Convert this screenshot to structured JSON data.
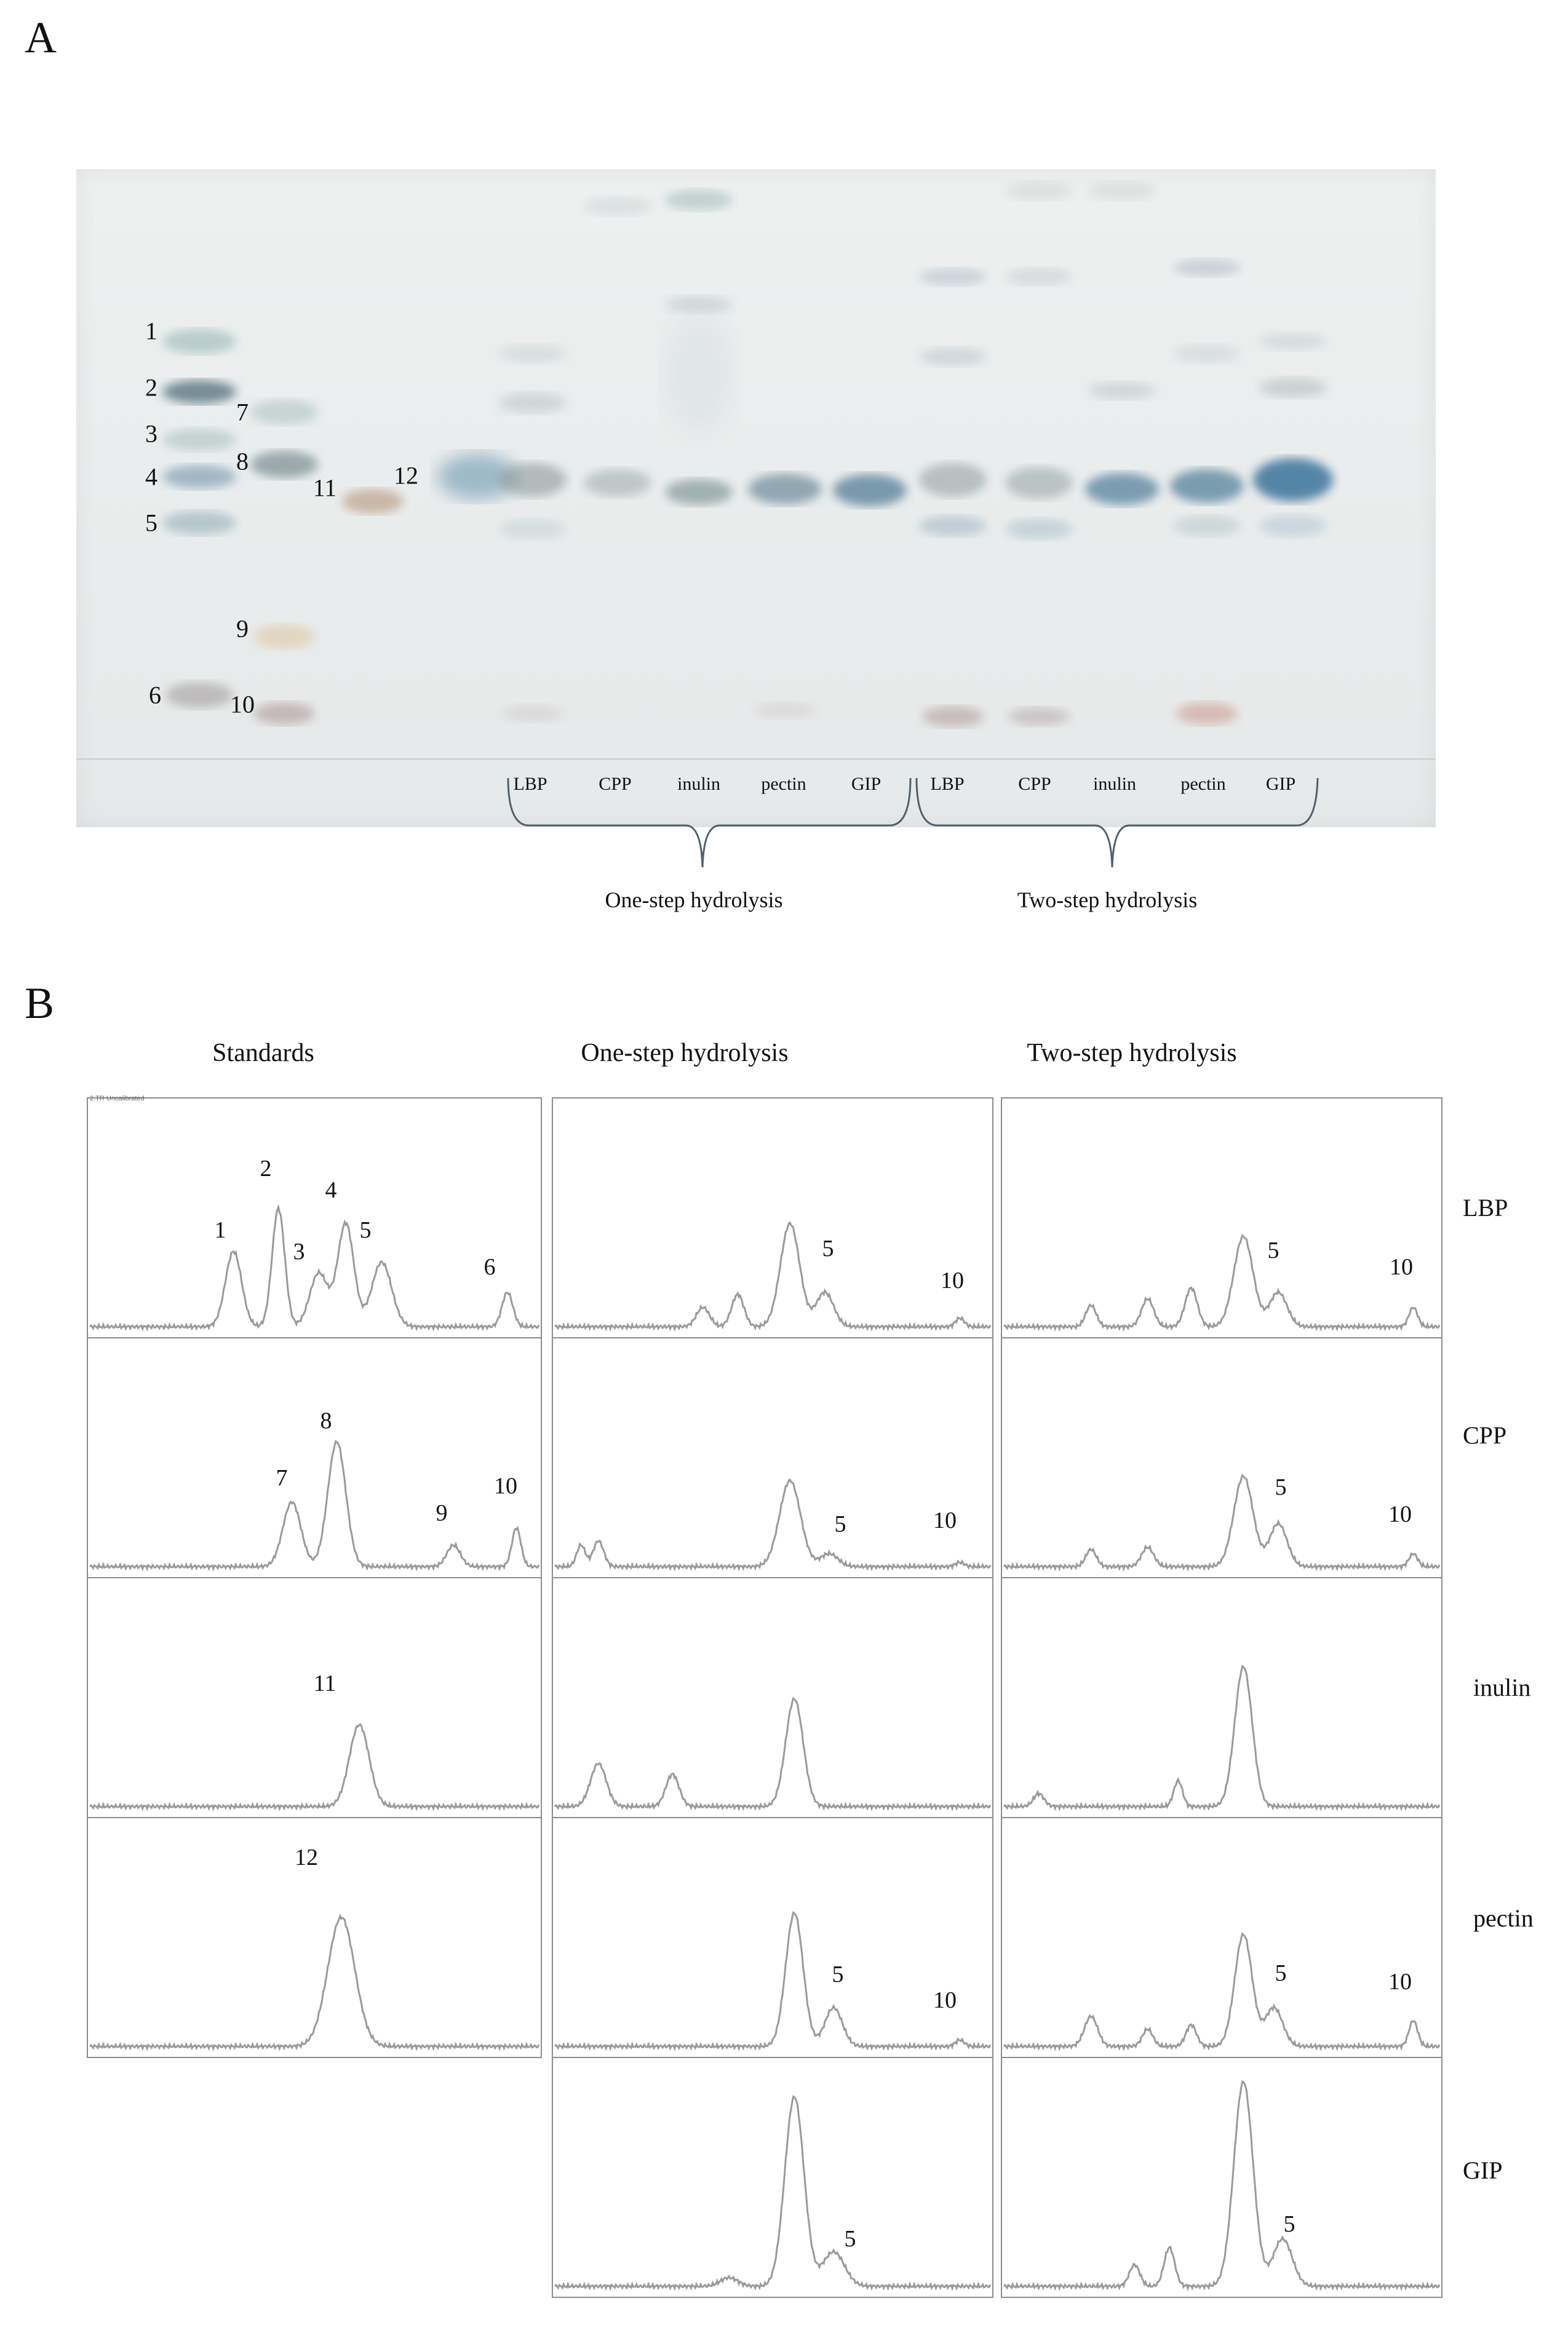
{
  "panel_a": {
    "letter": "A",
    "standard_numbers": [
      "1",
      "2",
      "3",
      "4",
      "5",
      "6",
      "7",
      "8",
      "9",
      "10",
      "11",
      "12"
    ],
    "lane_labels": [
      "LBP",
      "CPP",
      "inulin",
      "pectin",
      "GIP",
      "LBP",
      "CPP",
      "inulin",
      "pectin",
      "GIP"
    ],
    "groups": [
      "One-step hydrolysis",
      "Two-step hydrolysis"
    ],
    "colors": {
      "blue_band": "#5f8fa8",
      "grey_band": "#8a9a9a",
      "brown_band": "#b08a70",
      "orange_band": "#d8b070"
    }
  },
  "panel_b": {
    "letter": "B",
    "column_titles": [
      "Standards",
      "One-step hydrolysis",
      "Two-step hydrolysis"
    ],
    "row_labels": [
      "LBP",
      "CPP",
      "inulin",
      "pectin",
      "GIP"
    ],
    "uncalibrated_note": "2.TR Uncalibrated",
    "standards_peaks": [
      [
        "1",
        "2",
        "3",
        "4",
        "5",
        "6"
      ],
      [
        "7",
        "8",
        "9",
        "10"
      ],
      [
        "11"
      ],
      [
        "12"
      ]
    ],
    "one_step_peaks": [
      [
        "5",
        "10"
      ],
      [
        "5",
        "10"
      ],
      [],
      [
        "5",
        "10"
      ],
      [
        "5"
      ]
    ],
    "two_step_peaks": [
      [
        "5",
        "10"
      ],
      [
        "5",
        "10"
      ],
      [],
      [
        "5",
        "10"
      ],
      [
        "5"
      ]
    ]
  }
}
